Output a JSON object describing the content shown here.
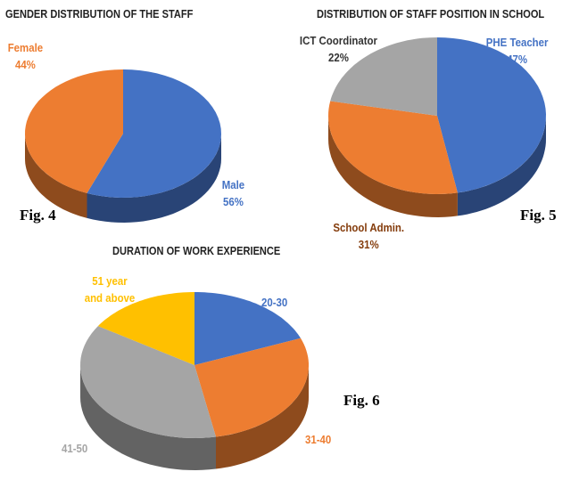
{
  "chart_data": [
    {
      "type": "pie",
      "title": "GENDER DISTRIBUTION OF THE STAFF",
      "figure": "Fig. 4",
      "categories": [
        "Male",
        "Female"
      ],
      "values": [
        56,
        44
      ],
      "value_labels": [
        "56%",
        "44%"
      ],
      "colors": [
        "#4472c4",
        "#ed7d31"
      ]
    },
    {
      "type": "pie",
      "title": "DISTRIBUTION OF STAFF POSITION IN SCHOOL",
      "figure": "Fig. 5",
      "categories": [
        "PHE Teacher",
        "School Admin.",
        "ICT Coordinator"
      ],
      "values": [
        47,
        31,
        22
      ],
      "value_labels": [
        "47%",
        "31%",
        "22%"
      ],
      "colors": [
        "#4472c4",
        "#ed7d31",
        "#a5a5a5"
      ]
    },
    {
      "type": "pie",
      "title": "DURATION OF WORK EXPERIENCE",
      "figure": "Fig. 6",
      "categories": [
        "20-30",
        "31-40",
        "41-50",
        "51 year and above"
      ],
      "values": [
        19,
        28,
        37,
        16
      ],
      "colors": [
        "#4472c4",
        "#ed7d31",
        "#a5a5a5",
        "#ffc000"
      ]
    }
  ]
}
